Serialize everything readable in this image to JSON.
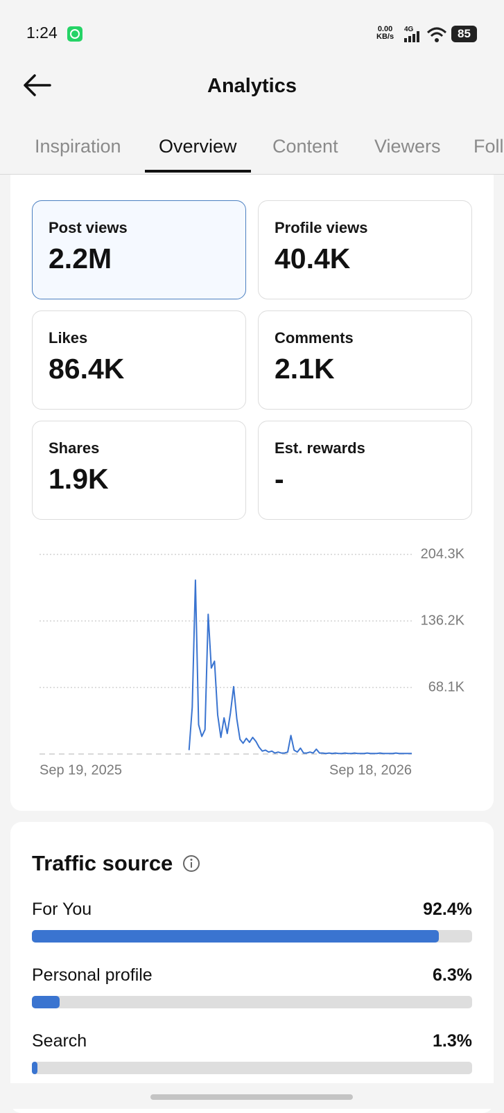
{
  "status_bar": {
    "time": "1:24",
    "net_speed": "0.00",
    "net_unit": "KB/s",
    "network": "4G",
    "battery": "85"
  },
  "header": {
    "title": "Analytics"
  },
  "tabs": {
    "items": [
      "Inspiration",
      "Overview",
      "Content",
      "Viewers",
      "Followers"
    ],
    "selected": 1
  },
  "metrics": [
    {
      "label": "Post views",
      "value": "2.2M",
      "selected": true
    },
    {
      "label": "Profile views",
      "value": "40.4K",
      "selected": false
    },
    {
      "label": "Likes",
      "value": "86.4K",
      "selected": false
    },
    {
      "label": "Comments",
      "value": "2.1K",
      "selected": false
    },
    {
      "label": "Shares",
      "value": "1.9K",
      "selected": false
    },
    {
      "label": "Est. rewards",
      "value": "-",
      "selected": false
    }
  ],
  "chart_data": {
    "type": "line",
    "color": "#3a74d0",
    "grid": true,
    "x_axis_labels": [
      "Sep 19, 2025",
      "Sep 18, 2026"
    ],
    "ylim": [
      0,
      204300
    ],
    "yticks": [
      {
        "value": 68100,
        "label": "68.1K"
      },
      {
        "value": 136200,
        "label": "136.2K"
      },
      {
        "value": 204300,
        "label": "204.3K"
      }
    ],
    "values": [
      null,
      null,
      null,
      null,
      null,
      null,
      null,
      null,
      null,
      null,
      null,
      null,
      null,
      null,
      null,
      null,
      null,
      null,
      null,
      null,
      null,
      null,
      null,
      null,
      null,
      null,
      null,
      null,
      null,
      null,
      null,
      null,
      null,
      null,
      null,
      null,
      null,
      null,
      null,
      null,
      null,
      null,
      null,
      null,
      null,
      null,
      null,
      4000,
      48000,
      178000,
      30000,
      18000,
      25000,
      143000,
      88000,
      95000,
      40000,
      17000,
      37000,
      21000,
      42000,
      69000,
      36000,
      15000,
      11000,
      16000,
      12000,
      17000,
      13000,
      7000,
      3000,
      4000,
      2000,
      3000,
      1000,
      2000,
      1000,
      1000,
      2000,
      19000,
      4000,
      2000,
      6000,
      1000,
      1000,
      2000,
      1000,
      5000,
      1000,
      1000,
      500,
      1000,
      500,
      1000,
      500,
      500,
      1000,
      500,
      500,
      1000,
      500,
      500,
      500,
      1000,
      500,
      500,
      500,
      1000,
      500,
      500,
      500,
      500,
      1000,
      500,
      500,
      500,
      500,
      500
    ]
  },
  "traffic_source": {
    "title": "Traffic source",
    "xlim": [
      0,
      100
    ],
    "color": "#3a74d0",
    "items": [
      {
        "name": "For You",
        "value": 92.4,
        "value_label": "92.4%"
      },
      {
        "name": "Personal profile",
        "value": 6.3,
        "value_label": "6.3%"
      },
      {
        "name": "Search",
        "value": 1.3,
        "value_label": "1.3%"
      }
    ]
  }
}
